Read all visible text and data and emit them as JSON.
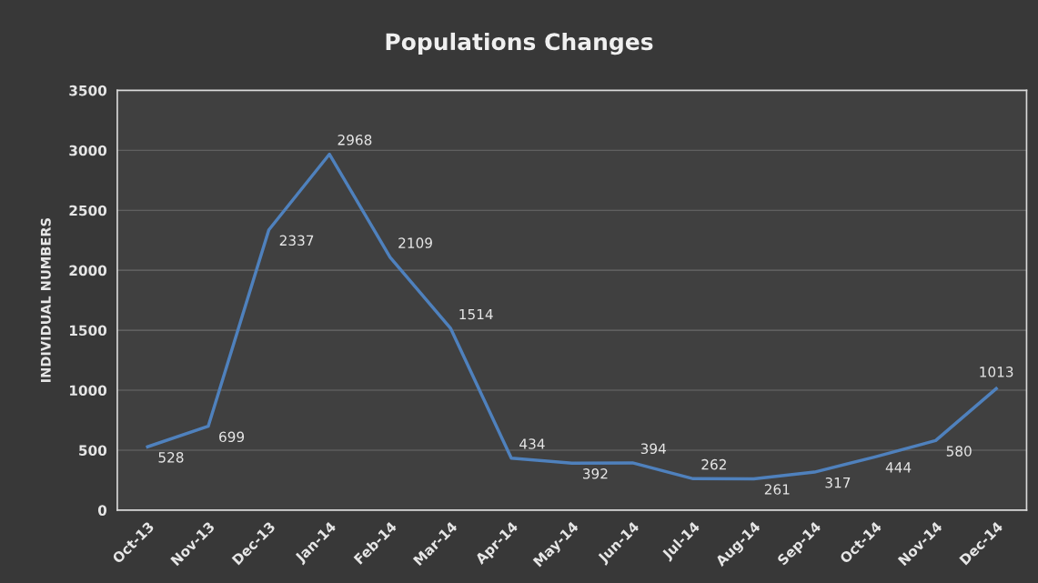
{
  "chart_data": {
    "type": "line",
    "title": "Populations Changes",
    "ylabel": "INDIVIDUAL NUMBERS",
    "categories": [
      "Oct-13",
      "Nov-13",
      "Dec-13",
      "Jan-14",
      "Feb-14",
      "Mar-14",
      "Apr-14",
      "May-14",
      "Jun-14",
      "Jul-14",
      "Aug-14",
      "Sep-14",
      "Oct-14",
      "Nov-14",
      "Dec-14"
    ],
    "series": [
      {
        "color": "#4f81bd",
        "values": [
          528,
          699,
          2337,
          2968,
          2109,
          1514,
          434,
          392,
          394,
          262,
          261,
          317,
          444,
          580,
          1013
        ]
      }
    ],
    "ylim": [
      0,
      3500
    ],
    "yticks": [
      0,
      500,
      1000,
      1500,
      2000,
      2500,
      3000,
      3500
    ],
    "grid": "y",
    "data_labels": true,
    "line_style": "solid"
  }
}
